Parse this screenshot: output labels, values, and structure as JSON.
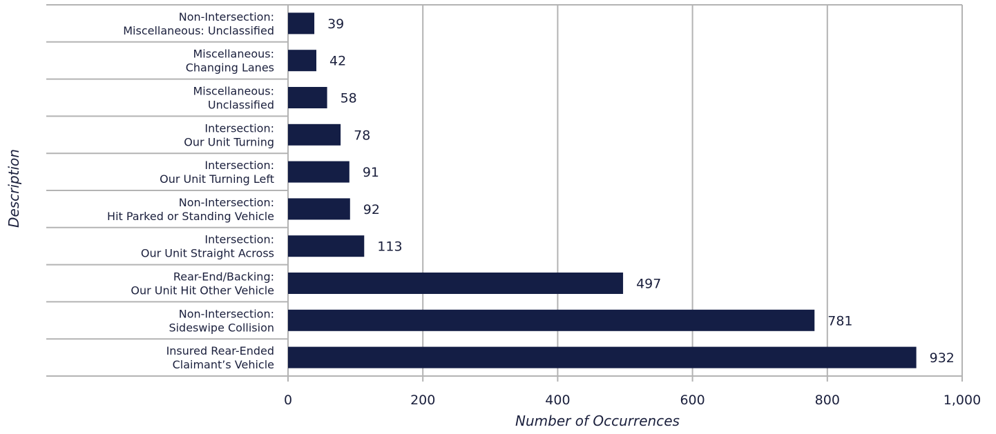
{
  "chart_data": {
    "type": "bar",
    "orientation": "horizontal",
    "categories": [
      [
        "Non-Intersection:",
        "Miscellaneous: Unclassified"
      ],
      [
        "Miscellaneous:",
        "Changing Lanes"
      ],
      [
        "Miscellaneous:",
        "Unclassified"
      ],
      [
        "Intersection:",
        "Our Unit Turning"
      ],
      [
        "Intersection:",
        "Our Unit Turning Left"
      ],
      [
        "Non-Intersection:",
        "Hit Parked or Standing Vehicle"
      ],
      [
        "Intersection:",
        "Our Unit Straight Across"
      ],
      [
        "Rear-End/Backing:",
        "Our Unit Hit Other Vehicle"
      ],
      [
        "Non-Intersection:",
        "Sideswipe Collision"
      ],
      [
        "Insured Rear-Ended",
        "Claimant’s Vehicle"
      ]
    ],
    "values": [
      39,
      42,
      58,
      78,
      91,
      92,
      113,
      497,
      781,
      932
    ],
    "value_labels": [
      "39",
      "42",
      "58",
      "78",
      "91",
      "92",
      "113",
      "497",
      "781",
      "932"
    ],
    "xlabel": "Number of Occurrences",
    "ylabel": "Description",
    "xlim": [
      0,
      1000
    ],
    "xticks": [
      0,
      200,
      400,
      600,
      800,
      1000
    ],
    "xtick_labels": [
      "0",
      "200",
      "400",
      "600",
      "800",
      "1,000"
    ],
    "grid": "vertical",
    "bar_color": "#141e45",
    "grid_color": "#b3b3b3"
  }
}
